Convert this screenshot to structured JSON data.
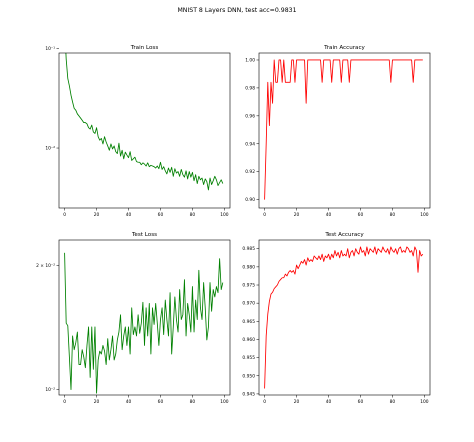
{
  "suptitle": "MNIST 8 Layers DNN, test acc=0.9831",
  "colors": {
    "train": "#008000",
    "accuracy": "#ff0000",
    "frame": "#000000"
  },
  "chart_data": [
    {
      "id": "train-loss",
      "type": "line",
      "title": "Train Loss",
      "xlabel": "",
      "ylabel": "",
      "yscale": "log",
      "xlim": [
        -3.5,
        103.5
      ],
      "ylim": [
        0.0025,
        0.09
      ],
      "xticks": [
        0,
        20,
        40,
        60,
        80,
        100
      ],
      "yticks": [
        {
          "value": 0.01,
          "label": "10⁻²"
        },
        {
          "value": 0.1,
          "label": "10⁻¹"
        }
      ],
      "color": "#008000",
      "series": [
        {
          "x": [
            0,
            1,
            2,
            3,
            4,
            5,
            6,
            7,
            8,
            9,
            10,
            11,
            12,
            13,
            14,
            15,
            16,
            17,
            18,
            19,
            20,
            21,
            22,
            23,
            24,
            25,
            26,
            27,
            28,
            29,
            30,
            31,
            32,
            33,
            34,
            35,
            36,
            37,
            38,
            39,
            40,
            41,
            42,
            43,
            44,
            45,
            46,
            47,
            48,
            49,
            50,
            51,
            52,
            53,
            54,
            55,
            56,
            57,
            58,
            59,
            60,
            61,
            62,
            63,
            64,
            65,
            66,
            67,
            68,
            69,
            70,
            71,
            72,
            73,
            74,
            75,
            76,
            77,
            78,
            79,
            80,
            81,
            82,
            83,
            84,
            85,
            86,
            87,
            88,
            89,
            90,
            91,
            92,
            93,
            94,
            95,
            96,
            97,
            98,
            99
          ],
          "y": [
            0.17,
            0.078,
            0.05,
            0.042,
            0.034,
            0.029,
            0.025,
            0.024,
            0.022,
            0.021,
            0.02,
            0.019,
            0.018,
            0.018,
            0.0175,
            0.016,
            0.0155,
            0.017,
            0.0145,
            0.014,
            0.016,
            0.013,
            0.012,
            0.0125,
            0.011,
            0.013,
            0.0115,
            0.0105,
            0.0095,
            0.011,
            0.0098,
            0.0105,
            0.0092,
            0.0088,
            0.0112,
            0.0083,
            0.0095,
            0.0078,
            0.0091,
            0.0085,
            0.008,
            0.0092,
            0.0075,
            0.0078,
            0.0081,
            0.0073,
            0.0072,
            0.0072,
            0.0068,
            0.0071,
            0.0069,
            0.0066,
            0.0071,
            0.0065,
            0.0067,
            0.0066,
            0.0065,
            0.0063,
            0.0066,
            0.0062,
            0.0072,
            0.0061,
            0.0065,
            0.0059,
            0.0055,
            0.0063,
            0.0057,
            0.0064,
            0.0052,
            0.0062,
            0.0056,
            0.0058,
            0.0052,
            0.0061,
            0.0054,
            0.0051,
            0.0059,
            0.0049,
            0.0058,
            0.0051,
            0.0057,
            0.0047,
            0.0054,
            0.0044,
            0.0052,
            0.0048,
            0.005,
            0.0043,
            0.0049,
            0.0046,
            0.0038,
            0.005,
            0.0043,
            0.0047,
            0.0052,
            0.0048,
            0.0042,
            0.0045,
            0.0048,
            0.0044
          ]
        }
      ]
    },
    {
      "id": "train-accuracy",
      "type": "line",
      "title": "Train Accuracy",
      "xlabel": "",
      "ylabel": "",
      "xlim": [
        -3.5,
        103.5
      ],
      "ylim": [
        0.894,
        1.005
      ],
      "xticks": [
        0,
        20,
        40,
        60,
        80,
        100
      ],
      "yticks": [
        {
          "value": 0.9,
          "label": "0.90"
        },
        {
          "value": 0.92,
          "label": "0.92"
        },
        {
          "value": 0.94,
          "label": "0.94"
        },
        {
          "value": 0.96,
          "label": "0.96"
        },
        {
          "value": 0.98,
          "label": "0.98"
        },
        {
          "value": 1.0,
          "label": "1.00"
        }
      ],
      "color": "#ff0000",
      "series": [
        {
          "x": [
            0,
            1,
            2,
            3,
            4,
            5,
            6,
            7,
            8,
            9,
            10,
            11,
            12,
            13,
            14,
            15,
            16,
            17,
            18,
            19,
            20,
            21,
            22,
            23,
            24,
            25,
            26,
            27,
            28,
            29,
            30,
            31,
            32,
            33,
            34,
            35,
            36,
            37,
            38,
            39,
            40,
            41,
            42,
            43,
            44,
            45,
            46,
            47,
            48,
            49,
            50,
            51,
            52,
            53,
            54,
            55,
            56,
            57,
            58,
            59,
            60,
            61,
            62,
            63,
            64,
            65,
            66,
            67,
            68,
            69,
            70,
            71,
            72,
            73,
            74,
            75,
            76,
            77,
            78,
            79,
            80,
            81,
            82,
            83,
            84,
            85,
            86,
            87,
            88,
            89,
            90,
            91,
            92,
            93,
            94,
            95,
            96,
            97,
            98,
            99
          ],
          "y": [
            0.9,
            0.94,
            0.984,
            0.953,
            0.984,
            0.969,
            1.0,
            0.984,
            0.984,
            1.0,
            1.0,
            0.984,
            1.0,
            0.984,
            0.984,
            0.984,
            0.984,
            1.0,
            1.0,
            0.984,
            1.0,
            1.0,
            1.0,
            1.0,
            1.0,
            1.0,
            0.969,
            1.0,
            1.0,
            1.0,
            1.0,
            1.0,
            1.0,
            1.0,
            1.0,
            1.0,
            0.984,
            1.0,
            1.0,
            1.0,
            1.0,
            1.0,
            0.984,
            1.0,
            1.0,
            1.0,
            1.0,
            1.0,
            0.984,
            1.0,
            1.0,
            1.0,
            1.0,
            0.984,
            1.0,
            1.0,
            1.0,
            1.0,
            1.0,
            1.0,
            1.0,
            1.0,
            1.0,
            1.0,
            1.0,
            1.0,
            1.0,
            1.0,
            1.0,
            1.0,
            1.0,
            1.0,
            1.0,
            1.0,
            1.0,
            1.0,
            1.0,
            1.0,
            1.0,
            0.984,
            1.0,
            1.0,
            1.0,
            1.0,
            1.0,
            1.0,
            1.0,
            1.0,
            1.0,
            1.0,
            1.0,
            1.0,
            1.0,
            0.984,
            1.0,
            1.0,
            1.0,
            1.0,
            1.0,
            1.0
          ]
        }
      ]
    },
    {
      "id": "test-loss",
      "type": "line",
      "title": "Test Loss",
      "xlabel": "",
      "ylabel": "",
      "yscale": "log",
      "xlim": [
        -3.5,
        103.5
      ],
      "ylim": [
        0.0097,
        0.0231
      ],
      "xticks": [
        0,
        20,
        40,
        60,
        80,
        100
      ],
      "yticks": [
        {
          "value": 0.01,
          "label": "10⁻²"
        },
        {
          "value": 0.02,
          "label": "2 × 10⁻²"
        }
      ],
      "color": "#008000",
      "series": [
        {
          "x": [
            0,
            1,
            2,
            3,
            4,
            5,
            6,
            7,
            8,
            9,
            10,
            11,
            12,
            13,
            14,
            15,
            16,
            17,
            18,
            19,
            20,
            21,
            22,
            23,
            24,
            25,
            26,
            27,
            28,
            29,
            30,
            31,
            32,
            33,
            34,
            35,
            36,
            37,
            38,
            39,
            40,
            41,
            42,
            43,
            44,
            45,
            46,
            47,
            48,
            49,
            50,
            51,
            52,
            53,
            54,
            55,
            56,
            57,
            58,
            59,
            60,
            61,
            62,
            63,
            64,
            65,
            66,
            67,
            68,
            69,
            70,
            71,
            72,
            73,
            74,
            75,
            76,
            77,
            78,
            79,
            80,
            81,
            82,
            83,
            84,
            85,
            86,
            87,
            88,
            89,
            90,
            91,
            92,
            93,
            94,
            95,
            96,
            97,
            98,
            99
          ],
          "y": [
            0.0215,
            0.0145,
            0.0143,
            0.012,
            0.01,
            0.0135,
            0.0125,
            0.013,
            0.0138,
            0.0115,
            0.0115,
            0.0125,
            0.012,
            0.0113,
            0.0128,
            0.0142,
            0.0107,
            0.0142,
            0.0112,
            0.0142,
            0.0098,
            0.0118,
            0.0124,
            0.0122,
            0.0128,
            0.0124,
            0.0115,
            0.0133,
            0.0118,
            0.0125,
            0.0135,
            0.0118,
            0.0122,
            0.0132,
            0.0138,
            0.0152,
            0.0125,
            0.0135,
            0.0142,
            0.0128,
            0.0142,
            0.0122,
            0.0158,
            0.0136,
            0.0142,
            0.0135,
            0.0152,
            0.0137,
            0.0145,
            0.0163,
            0.0128,
            0.0158,
            0.0135,
            0.0162,
            0.0122,
            0.0158,
            0.0144,
            0.0162,
            0.0145,
            0.0128,
            0.0148,
            0.0158,
            0.0136,
            0.0165,
            0.0148,
            0.0135,
            0.0172,
            0.0122,
            0.0142,
            0.0168,
            0.0148,
            0.0138,
            0.0175,
            0.0148,
            0.0152,
            0.0185,
            0.0135,
            0.0162,
            0.0152,
            0.0138,
            0.0178,
            0.0138,
            0.0165,
            0.0148,
            0.0195,
            0.0158,
            0.0148,
            0.0182,
            0.0158,
            0.0132,
            0.0142,
            0.0182,
            0.0155,
            0.0175,
            0.0168,
            0.0178,
            0.0172,
            0.0208,
            0.0175,
            0.0182
          ]
        }
      ]
    },
    {
      "id": "test-accuracy",
      "type": "line",
      "title": "Test Accuracy",
      "xlabel": "",
      "ylabel": "",
      "xlim": [
        -3.5,
        103.5
      ],
      "ylim": [
        0.9447,
        0.9874
      ],
      "xticks": [
        0,
        20,
        40,
        60,
        80,
        100
      ],
      "yticks": [
        {
          "value": 0.945,
          "label": "0.945"
        },
        {
          "value": 0.95,
          "label": "0.950"
        },
        {
          "value": 0.955,
          "label": "0.955"
        },
        {
          "value": 0.96,
          "label": "0.960"
        },
        {
          "value": 0.965,
          "label": "0.965"
        },
        {
          "value": 0.97,
          "label": "0.970"
        },
        {
          "value": 0.975,
          "label": "0.975"
        },
        {
          "value": 0.98,
          "label": "0.980"
        },
        {
          "value": 0.985,
          "label": "0.985"
        }
      ],
      "color": "#ff0000",
      "series": [
        {
          "x": [
            0,
            1,
            2,
            3,
            4,
            5,
            6,
            7,
            8,
            9,
            10,
            11,
            12,
            13,
            14,
            15,
            16,
            17,
            18,
            19,
            20,
            21,
            22,
            23,
            24,
            25,
            26,
            27,
            28,
            29,
            30,
            31,
            32,
            33,
            34,
            35,
            36,
            37,
            38,
            39,
            40,
            41,
            42,
            43,
            44,
            45,
            46,
            47,
            48,
            49,
            50,
            51,
            52,
            53,
            54,
            55,
            56,
            57,
            58,
            59,
            60,
            61,
            62,
            63,
            64,
            65,
            66,
            67,
            68,
            69,
            70,
            71,
            72,
            73,
            74,
            75,
            76,
            77,
            78,
            79,
            80,
            81,
            82,
            83,
            84,
            85,
            86,
            87,
            88,
            89,
            90,
            91,
            92,
            93,
            94,
            95,
            96,
            97,
            98,
            99
          ],
          "y": [
            0.9465,
            0.961,
            0.967,
            0.9705,
            0.9725,
            0.973,
            0.974,
            0.9745,
            0.975,
            0.976,
            0.9765,
            0.977,
            0.977,
            0.978,
            0.9775,
            0.9785,
            0.979,
            0.9785,
            0.979,
            0.978,
            0.9805,
            0.9795,
            0.9805,
            0.9815,
            0.981,
            0.982,
            0.9805,
            0.9825,
            0.9815,
            0.982,
            0.9815,
            0.983,
            0.9825,
            0.982,
            0.983,
            0.982,
            0.9835,
            0.9815,
            0.983,
            0.9825,
            0.9835,
            0.982,
            0.9835,
            0.9825,
            0.9845,
            0.983,
            0.984,
            0.9825,
            0.9845,
            0.983,
            0.9835,
            0.983,
            0.985,
            0.9825,
            0.984,
            0.9845,
            0.983,
            0.985,
            0.984,
            0.9835,
            0.9855,
            0.984,
            0.9845,
            0.983,
            0.9855,
            0.9835,
            0.985,
            0.9845,
            0.984,
            0.9855,
            0.9835,
            0.985,
            0.9845,
            0.984,
            0.9855,
            0.9845,
            0.984,
            0.985,
            0.9835,
            0.9855,
            0.9845,
            0.984,
            0.985,
            0.9835,
            0.985,
            0.9855,
            0.984,
            0.9845,
            0.984,
            0.9855,
            0.985,
            0.984,
            0.9845,
            0.983,
            0.9855,
            0.9845,
            0.9785,
            0.9845,
            0.983,
            0.9835
          ]
        }
      ]
    }
  ]
}
